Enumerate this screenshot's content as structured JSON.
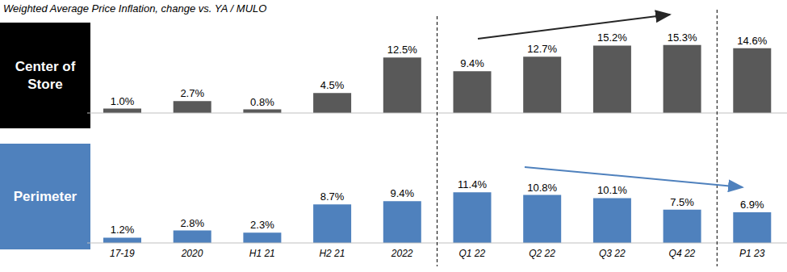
{
  "title": "Weighted Average Price Inflation, change vs. YA / MULO",
  "chart_data": {
    "type": "bar",
    "categories": [
      "17-19",
      "2020",
      "H1 21",
      "H2 21",
      "2022",
      "Q1 22",
      "Q2 22",
      "Q3 22",
      "Q4 22",
      "P1 23"
    ],
    "series": [
      {
        "name": "Center of Store",
        "color": "#595959",
        "values": [
          1.0,
          2.7,
          0.8,
          4.5,
          12.5,
          9.4,
          12.7,
          15.2,
          15.3,
          14.6
        ],
        "value_labels": [
          "1.0%",
          "2.7%",
          "0.8%",
          "4.5%",
          "12.5%",
          "9.4%",
          "12.7%",
          "15.2%",
          "15.3%",
          "14.6%"
        ]
      },
      {
        "name": "Perimeter",
        "color": "#4f81bd",
        "values": [
          1.2,
          2.8,
          2.3,
          8.7,
          9.4,
          11.4,
          10.8,
          10.1,
          7.5,
          6.9
        ],
        "value_labels": [
          "1.2%",
          "2.8%",
          "2.3%",
          "8.7%",
          "9.4%",
          "11.4%",
          "10.8%",
          "10.1%",
          "7.5%",
          "6.9%"
        ]
      }
    ],
    "ylim": [
      0,
      16
    ],
    "data_labels": true,
    "tick_labels": "x"
  }
}
